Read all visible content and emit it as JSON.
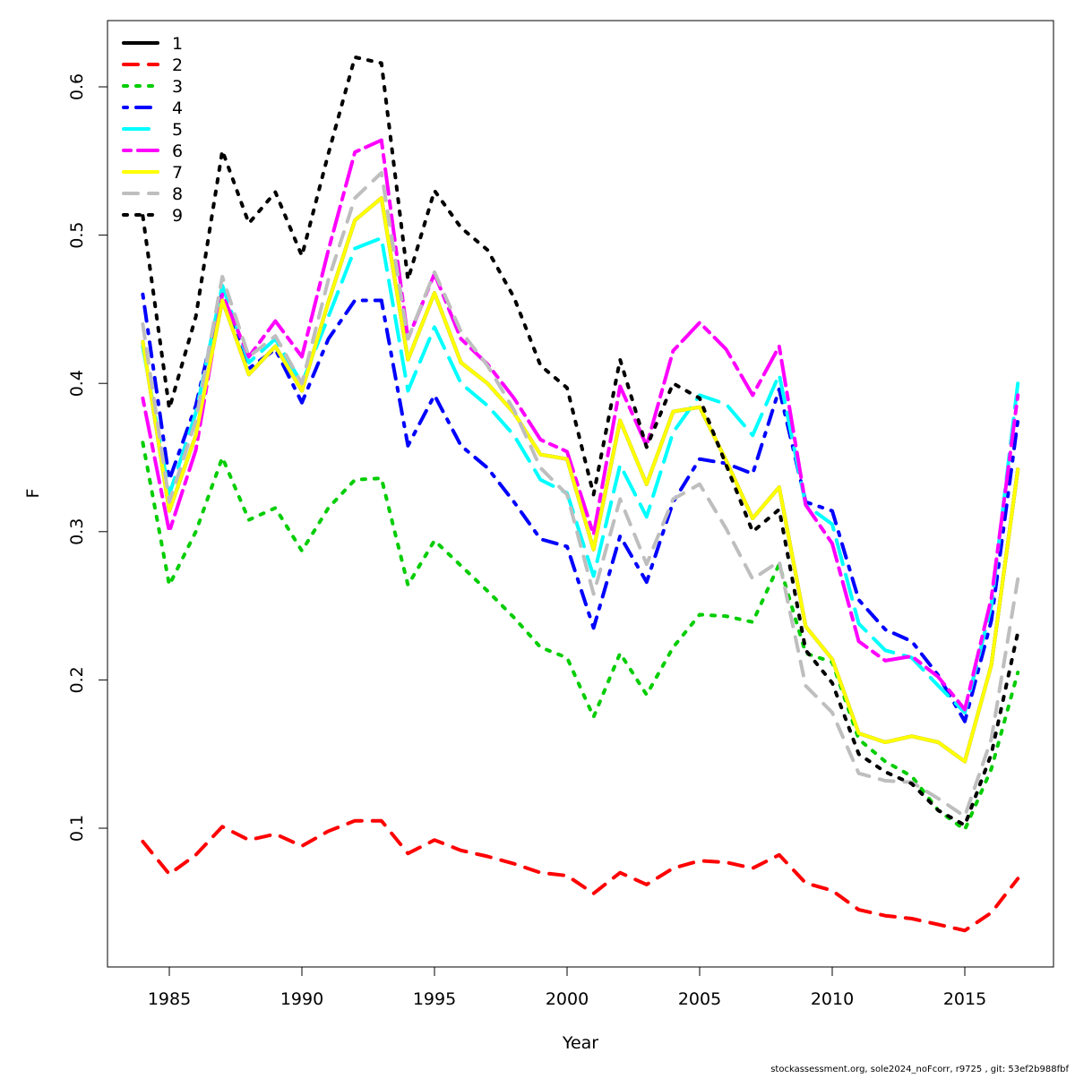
{
  "chart_data": {
    "type": "line",
    "title": "",
    "xlabel": "Year",
    "ylabel": "F",
    "xlim": [
      1983,
      2018.5
    ],
    "ylim": [
      0.007,
      0.645
    ],
    "grid": false,
    "legend_position": "top-left",
    "x_ticks": [
      1985,
      1990,
      1995,
      2000,
      2005,
      2010,
      2015
    ],
    "y_ticks": [
      0.1,
      0.2,
      0.3,
      0.4,
      0.5,
      0.6
    ],
    "x": [
      1984,
      1985,
      1986,
      1987,
      1988,
      1989,
      1990,
      1991,
      1992,
      1993,
      1994,
      1995,
      1996,
      1997,
      1998,
      1999,
      2000,
      2001,
      2002,
      2003,
      2004,
      2005,
      2006,
      2007,
      2008,
      2009,
      2010,
      2011,
      2012,
      2013,
      2014,
      2015,
      2016,
      2017
    ],
    "series": [
      {
        "name": "1",
        "color": "#000000",
        "dash": "solid",
        "values": [
          0.428,
          0.314,
          0.365,
          0.456,
          0.406,
          0.425,
          0.395,
          0.455,
          0.51,
          0.525,
          0.416,
          0.461,
          0.414,
          0.4,
          0.38,
          0.352,
          0.349,
          0.288,
          0.375,
          0.332,
          0.381,
          0.384,
          0.348,
          0.309,
          0.33,
          0.236,
          0.214,
          0.164,
          0.158,
          0.162,
          0.158,
          0.145,
          0.21,
          0.342
        ]
      },
      {
        "name": "2",
        "color": "#ff0000",
        "dash": "dashed",
        "values": [
          0.091,
          0.069,
          0.082,
          0.101,
          0.092,
          0.096,
          0.088,
          0.098,
          0.105,
          0.105,
          0.083,
          0.092,
          0.085,
          0.081,
          0.076,
          0.07,
          0.068,
          0.056,
          0.07,
          0.062,
          0.073,
          0.078,
          0.077,
          0.073,
          0.082,
          0.063,
          0.058,
          0.045,
          0.041,
          0.039,
          0.035,
          0.031,
          0.043,
          0.066
        ]
      },
      {
        "name": "3",
        "color": "#00cd00",
        "dash": "dotted",
        "values": [
          0.36,
          0.264,
          0.3,
          0.35,
          0.308,
          0.316,
          0.287,
          0.316,
          0.335,
          0.336,
          0.264,
          0.294,
          0.277,
          0.26,
          0.242,
          0.222,
          0.215,
          0.175,
          0.218,
          0.19,
          0.222,
          0.244,
          0.243,
          0.239,
          0.278,
          0.218,
          0.212,
          0.16,
          0.145,
          0.135,
          0.112,
          0.099,
          0.14,
          0.205
        ]
      },
      {
        "name": "4",
        "color": "#0000ff",
        "dash": "dotdash",
        "values": [
          0.46,
          0.335,
          0.385,
          0.462,
          0.41,
          0.423,
          0.387,
          0.43,
          0.456,
          0.456,
          0.358,
          0.392,
          0.358,
          0.343,
          0.32,
          0.295,
          0.29,
          0.235,
          0.297,
          0.266,
          0.32,
          0.349,
          0.346,
          0.339,
          0.396,
          0.32,
          0.314,
          0.254,
          0.234,
          0.226,
          0.203,
          0.172,
          0.24,
          0.375
        ]
      },
      {
        "name": "5",
        "color": "#00ffff",
        "dash": "longdash",
        "values": [
          0.425,
          0.325,
          0.38,
          0.466,
          0.414,
          0.43,
          0.4,
          0.445,
          0.491,
          0.498,
          0.395,
          0.438,
          0.4,
          0.385,
          0.365,
          0.335,
          0.326,
          0.27,
          0.345,
          0.31,
          0.367,
          0.392,
          0.386,
          0.365,
          0.406,
          0.318,
          0.305,
          0.238,
          0.22,
          0.215,
          0.196,
          0.178,
          0.25,
          0.4
        ]
      },
      {
        "name": "6",
        "color": "#ff00ff",
        "dash": "twodash",
        "values": [
          0.39,
          0.3,
          0.355,
          0.46,
          0.418,
          0.442,
          0.418,
          0.49,
          0.556,
          0.564,
          0.43,
          0.474,
          0.43,
          0.413,
          0.39,
          0.362,
          0.354,
          0.298,
          0.398,
          0.358,
          0.422,
          0.441,
          0.423,
          0.392,
          0.425,
          0.318,
          0.292,
          0.226,
          0.213,
          0.216,
          0.202,
          0.18,
          0.255,
          0.392
        ]
      },
      {
        "name": "7",
        "color": "#ffff00",
        "dash": "solid",
        "values": [
          0.428,
          0.314,
          0.365,
          0.456,
          0.406,
          0.425,
          0.395,
          0.455,
          0.51,
          0.525,
          0.416,
          0.461,
          0.414,
          0.4,
          0.38,
          0.352,
          0.349,
          0.288,
          0.375,
          0.332,
          0.381,
          0.384,
          0.348,
          0.309,
          0.33,
          0.236,
          0.214,
          0.164,
          0.158,
          0.162,
          0.158,
          0.145,
          0.21,
          0.342
        ]
      },
      {
        "name": "8",
        "color": "#bebebe",
        "dash": "dashed",
        "values": [
          0.44,
          0.32,
          0.375,
          0.472,
          0.418,
          0.432,
          0.4,
          0.47,
          0.525,
          0.542,
          0.43,
          0.475,
          0.435,
          0.412,
          0.382,
          0.343,
          0.325,
          0.258,
          0.322,
          0.278,
          0.322,
          0.332,
          0.302,
          0.268,
          0.28,
          0.196,
          0.178,
          0.137,
          0.132,
          0.131,
          0.12,
          0.108,
          0.16,
          0.268
        ]
      },
      {
        "name": "9",
        "color": "#000000",
        "dash": "dotted",
        "values": [
          0.513,
          0.383,
          0.445,
          0.557,
          0.508,
          0.529,
          0.486,
          0.555,
          0.62,
          0.616,
          0.47,
          0.53,
          0.505,
          0.49,
          0.458,
          0.412,
          0.397,
          0.325,
          0.416,
          0.357,
          0.4,
          0.39,
          0.345,
          0.3,
          0.315,
          0.22,
          0.198,
          0.15,
          0.138,
          0.13,
          0.112,
          0.102,
          0.15,
          0.232
        ]
      }
    ]
  },
  "footer": "stockassessment.org, sole2024_noFcorr, r9725 , git: 53ef2b988fbf"
}
